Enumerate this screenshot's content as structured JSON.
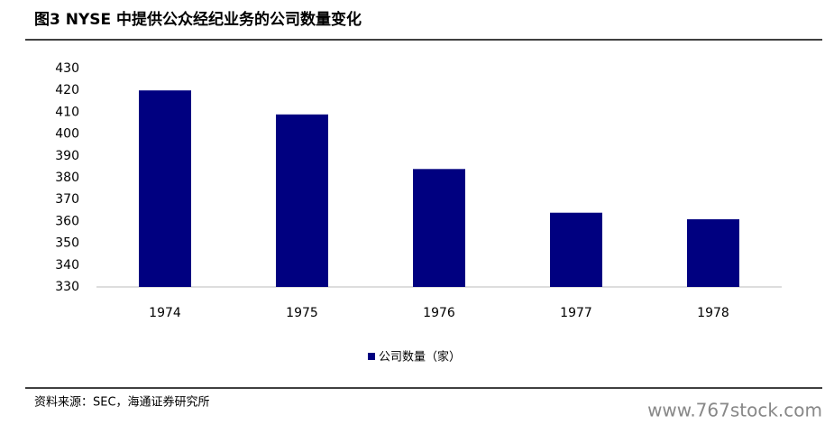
{
  "chart_data": {
    "type": "bar",
    "title": "图3  NYSE 中提供公众经纪业务的公司数量变化",
    "categories": [
      "1974",
      "1975",
      "1976",
      "1977",
      "1978"
    ],
    "series": [
      {
        "name": "公司数量（家）",
        "color": "#000080",
        "values": [
          420,
          409,
          384,
          364,
          361
        ]
      }
    ],
    "ylim": [
      330,
      430
    ],
    "yticks": [
      330,
      340,
      350,
      360,
      370,
      380,
      390,
      400,
      410,
      420,
      430
    ],
    "source": "资料来源：SEC，海通证券研究所",
    "watermark": "www.767stock.com"
  }
}
